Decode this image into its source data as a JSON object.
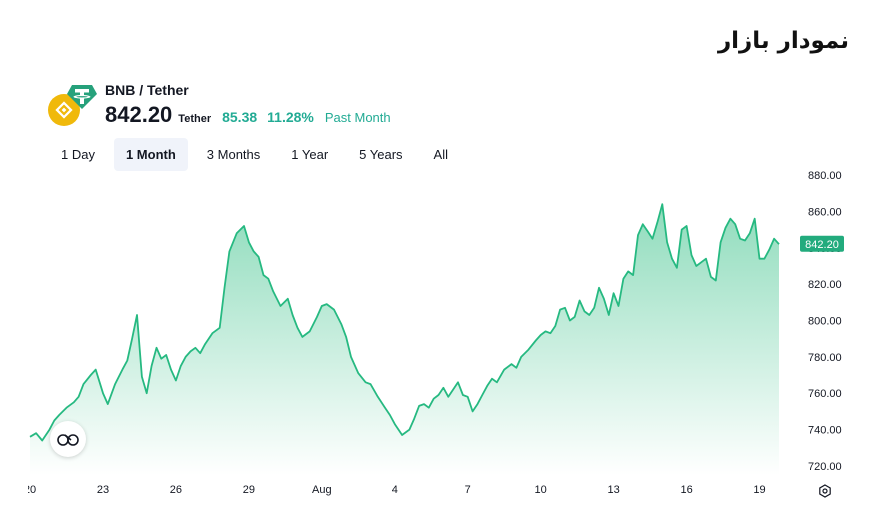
{
  "header": {
    "title": "نمودار بازار"
  },
  "symbol": {
    "pair": "BNB / Tether",
    "price": "842.20",
    "quote_unit": "Tether",
    "change_abs": "85.38",
    "change_pct": "11.28%",
    "period": "Past Month",
    "icons": [
      "bnb-coin-icon",
      "tether-coin-icon"
    ]
  },
  "range_tabs": [
    {
      "label": "1 Day",
      "active": false
    },
    {
      "label": "1 Month",
      "active": true
    },
    {
      "label": "3 Months",
      "active": false
    },
    {
      "label": "1 Year",
      "active": false
    },
    {
      "label": "5 Years",
      "active": false
    },
    {
      "label": "All",
      "active": false
    }
  ],
  "colors": {
    "line": "#26b981",
    "area_top": "#8fdcbc",
    "area_bottom": "#ffffff",
    "label_bg": "#22ab7d",
    "positive": "#22ab94",
    "bnb": "#f0b90b",
    "tether": "#26a17b"
  },
  "chart_data": {
    "type": "area",
    "title": "",
    "xlabel": "",
    "ylabel": "",
    "x_ticks": [
      "20",
      "23",
      "26",
      "29",
      "Aug",
      "4",
      "7",
      "10",
      "13",
      "16",
      "19"
    ],
    "y_ticks": [
      "880.00",
      "860.00",
      "840.00",
      "820.00",
      "800.00",
      "780.00",
      "760.00",
      "740.00",
      "720.00"
    ],
    "ylim": [
      715,
      885
    ],
    "x_range": [
      "Jul 19",
      "Aug 19"
    ],
    "last_price_label": "842.20",
    "grid": false,
    "series": [
      {
        "x": [
          0,
          0.25,
          0.5,
          0.8,
          1.0,
          1.2,
          1.5,
          1.8,
          2.0,
          2.2,
          2.5,
          2.7,
          3.0,
          3.2,
          3.5,
          3.8,
          4.0,
          4.2,
          4.4,
          4.6,
          4.8,
          5.0,
          5.2,
          5.4,
          5.6,
          5.8,
          6.0,
          6.2,
          6.4,
          6.6,
          6.8,
          7.0,
          7.2,
          7.5,
          7.8,
          8.0,
          8.2,
          8.5,
          8.8,
          9.0,
          9.2,
          9.4,
          9.6,
          9.8,
          10.0,
          10.3,
          10.6,
          10.8,
          11.0,
          11.2,
          11.5,
          11.8,
          12.0,
          12.2,
          12.5,
          12.8,
          13.0,
          13.2,
          13.5,
          13.8,
          14.0,
          14.3,
          14.6,
          14.8,
          15.0,
          15.3,
          15.6,
          15.8,
          16.0,
          16.2,
          16.4,
          16.6,
          16.8,
          17.0,
          17.2,
          17.4,
          17.6,
          17.8,
          18.0,
          18.2,
          18.4,
          18.6,
          18.8,
          19.0,
          19.2,
          19.5,
          19.8,
          20.0,
          20.2,
          20.5,
          20.8,
          21.0,
          21.2,
          21.4,
          21.6,
          21.8,
          22.0,
          22.2,
          22.4,
          22.6,
          22.8,
          23.0,
          23.2,
          23.4,
          23.6,
          23.8,
          24.0,
          24.2,
          24.4,
          24.6,
          24.8,
          25.0,
          25.2,
          25.4,
          25.6,
          25.8,
          26.0,
          26.2,
          26.4,
          26.6,
          26.8,
          27.0,
          27.2,
          27.4,
          27.6,
          27.8,
          28.0,
          28.2,
          28.4,
          28.6,
          28.8,
          29.0,
          29.2,
          29.4,
          29.6,
          29.8,
          30.0,
          30.2,
          30.4,
          30.6,
          30.8
        ],
        "y": [
          736,
          738,
          734,
          740,
          745,
          748,
          752,
          755,
          758,
          765,
          770,
          773,
          760,
          754,
          765,
          773,
          778,
          790,
          803,
          769,
          760,
          775,
          785,
          779,
          781,
          773,
          767,
          775,
          780,
          783,
          785,
          782,
          787,
          793,
          796,
          818,
          838,
          848,
          852,
          843,
          838,
          835,
          825,
          823,
          816,
          808,
          812,
          803,
          796,
          791,
          794,
          802,
          808,
          809,
          806,
          798,
          791,
          780,
          771,
          766,
          765,
          758,
          752,
          748,
          743,
          737,
          740,
          746,
          753,
          754,
          752,
          757,
          759,
          763,
          758,
          762,
          766,
          759,
          758,
          750,
          754,
          759,
          764,
          768,
          766,
          773,
          776,
          774,
          780,
          784,
          789,
          792,
          794,
          793,
          797,
          806,
          807,
          800,
          802,
          811,
          805,
          803,
          807,
          818,
          812,
          803,
          815,
          808,
          823,
          827,
          825,
          847,
          853,
          849,
          845,
          854,
          864,
          843,
          834,
          829,
          850,
          852,
          836,
          830,
          832,
          834,
          824,
          822,
          843,
          851,
          856,
          853,
          845,
          844,
          848,
          856,
          834,
          834,
          839,
          845,
          842
        ]
      }
    ]
  }
}
